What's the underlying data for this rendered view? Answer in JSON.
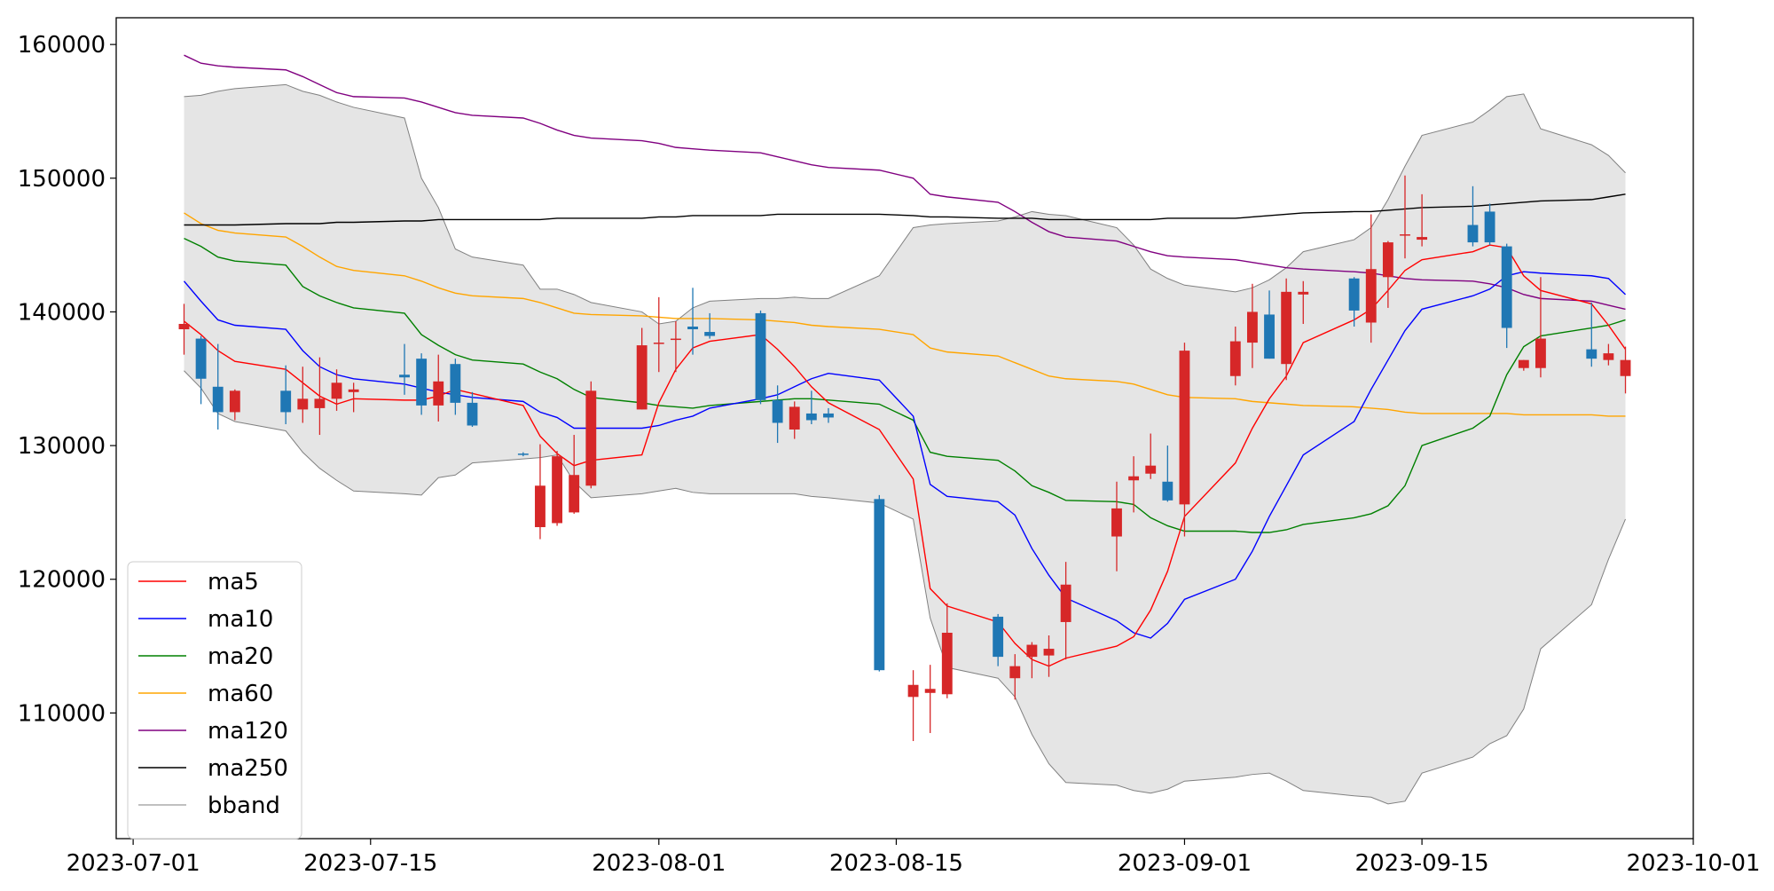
{
  "chart_data": {
    "type": "candlestick",
    "x_axis": {
      "ticks": [
        "2023-07-01",
        "2023-07-15",
        "2023-08-01",
        "2023-08-15",
        "2023-09-01",
        "2023-09-15",
        "2023-10-01"
      ],
      "range": [
        "2023-06-30",
        "2023-10-01"
      ]
    },
    "y_axis": {
      "ticks": [
        110000,
        120000,
        130000,
        140000,
        150000,
        160000
      ],
      "range": [
        100600,
        162000
      ]
    },
    "grid": false,
    "legend": {
      "position": "lower-left",
      "entries": [
        {
          "label": "ma5",
          "color": "#ff0000"
        },
        {
          "label": "ma10",
          "color": "#0000ff"
        },
        {
          "label": "ma20",
          "color": "#008000"
        },
        {
          "label": "ma60",
          "color": "#ffa500"
        },
        {
          "label": "ma120",
          "color": "#800080"
        },
        {
          "label": "ma250",
          "color": "#000000"
        },
        {
          "label": "bband",
          "color": "#808080"
        }
      ]
    },
    "colors": {
      "up": "#d62728",
      "down": "#1f77b4",
      "band_fill": "#e5e5e5"
    },
    "dates": [
      "2023-07-04",
      "2023-07-05",
      "2023-07-06",
      "2023-07-07",
      "2023-07-10",
      "2023-07-11",
      "2023-07-12",
      "2023-07-13",
      "2023-07-14",
      "2023-07-17",
      "2023-07-18",
      "2023-07-19",
      "2023-07-20",
      "2023-07-21",
      "2023-07-24",
      "2023-07-25",
      "2023-07-26",
      "2023-07-27",
      "2023-07-28",
      "2023-07-31",
      "2023-08-01",
      "2023-08-02",
      "2023-08-03",
      "2023-08-04",
      "2023-08-07",
      "2023-08-08",
      "2023-08-09",
      "2023-08-10",
      "2023-08-11",
      "2023-08-14",
      "2023-08-16",
      "2023-08-17",
      "2023-08-18",
      "2023-08-21",
      "2023-08-22",
      "2023-08-23",
      "2023-08-24",
      "2023-08-25",
      "2023-08-28",
      "2023-08-29",
      "2023-08-30",
      "2023-08-31",
      "2023-09-01",
      "2023-09-04",
      "2023-09-05",
      "2023-09-06",
      "2023-09-07",
      "2023-09-08",
      "2023-09-11",
      "2023-09-12",
      "2023-09-13",
      "2023-09-14",
      "2023-09-15",
      "2023-09-18",
      "2023-09-19",
      "2023-09-20",
      "2023-09-21",
      "2023-09-22",
      "2023-09-25",
      "2023-09-26",
      "2023-09-27"
    ],
    "open": [
      138700,
      138000,
      134400,
      132500,
      134100,
      132700,
      132800,
      133500,
      134000,
      135300,
      136500,
      133000,
      136100,
      133200,
      129400,
      123900,
      124200,
      125000,
      127000,
      132700,
      137600,
      137900,
      138900,
      138500,
      139900,
      133400,
      131200,
      132400,
      132400,
      126000,
      111200,
      111500,
      111400,
      117200,
      112600,
      114200,
      114300,
      116800,
      123200,
      127400,
      127900,
      127300,
      125600,
      135200,
      137700,
      139800,
      136100,
      141300,
      142500,
      139200,
      142600,
      145800,
      145400,
      146500,
      147500,
      144900,
      135800,
      135800,
      137200,
      136400,
      135200
    ],
    "close": [
      139100,
      135000,
      132500,
      134100,
      132500,
      133500,
      133500,
      134700,
      134200,
      135100,
      133000,
      134800,
      133200,
      131500,
      129300,
      127000,
      129200,
      127800,
      134100,
      137500,
      137700,
      138000,
      138700,
      138200,
      133400,
      131700,
      132900,
      131900,
      132100,
      113200,
      112100,
      111800,
      116000,
      114200,
      113500,
      115100,
      114800,
      119600,
      125300,
      127700,
      128500,
      125900,
      137100,
      137800,
      140000,
      136500,
      141500,
      141500,
      140100,
      143200,
      145200,
      145800,
      145600,
      145200,
      145200,
      138800,
      136400,
      138000,
      136500,
      136900,
      136400
    ],
    "high": [
      140600,
      138200,
      137600,
      134200,
      136000,
      135900,
      136600,
      135700,
      134700,
      137600,
      136900,
      136800,
      136500,
      134000,
      129500,
      130100,
      129600,
      130800,
      134800,
      138800,
      141100,
      139300,
      141800,
      139900,
      140100,
      134500,
      133300,
      134100,
      132800,
      126300,
      113200,
      113600,
      118200,
      117400,
      114400,
      115300,
      115800,
      121300,
      127300,
      129200,
      130900,
      130000,
      137700,
      138900,
      142100,
      141600,
      142500,
      142300,
      142600,
      147300,
      145300,
      150200,
      148800,
      149400,
      148100,
      145100,
      136400,
      142600,
      140700,
      137600,
      137400
    ],
    "low": [
      136800,
      133100,
      131200,
      131900,
      131600,
      131700,
      130800,
      132600,
      132500,
      133800,
      132300,
      131800,
      132300,
      131400,
      129200,
      123000,
      124000,
      124900,
      126800,
      132700,
      135500,
      135500,
      136800,
      138000,
      133100,
      130200,
      130500,
      131600,
      131700,
      113100,
      107900,
      108500,
      111100,
      113500,
      111000,
      112600,
      112700,
      114000,
      120600,
      125000,
      127500,
      125800,
      123200,
      134500,
      135800,
      136500,
      134900,
      139100,
      138900,
      137700,
      140300,
      144000,
      144900,
      144900,
      145000,
      137300,
      135600,
      135100,
      135900,
      136000,
      133900
    ],
    "ma5": [
      139300,
      138300,
      137100,
      136300,
      135700,
      134700,
      133700,
      133100,
      133500,
      133400,
      133400,
      133700,
      134200,
      133900,
      133000,
      130700,
      129400,
      128500,
      128900,
      129300,
      133200,
      135700,
      137300,
      137800,
      138300,
      137200,
      135900,
      134400,
      133200,
      131200,
      127500,
      119300,
      118000,
      116800,
      115200,
      114000,
      113500,
      114100,
      115000,
      115700,
      117700,
      120600,
      124700,
      128700,
      131300,
      133500,
      135200,
      137700,
      139400,
      140200,
      141600,
      143100,
      143900,
      144500,
      145000,
      144800,
      142700,
      141600,
      140600,
      139000,
      137200
    ],
    "ma10": [
      142300,
      140800,
      139400,
      139000,
      138700,
      137100,
      135900,
      135300,
      135000,
      134600,
      134300,
      134000,
      133800,
      133600,
      133300,
      132500,
      132100,
      131300,
      131300,
      131300,
      131500,
      131900,
      132200,
      132800,
      133500,
      133800,
      134400,
      135000,
      135400,
      134900,
      132200,
      127100,
      126200,
      125800,
      124800,
      122300,
      120300,
      118600,
      116900,
      116000,
      115600,
      116700,
      118500,
      120000,
      122100,
      124700,
      127000,
      129300,
      131800,
      134200,
      136400,
      138600,
      140200,
      141200,
      141700,
      142700,
      143000,
      142900,
      142700,
      142500,
      141300
    ],
    "ma20": [
      145500,
      144900,
      144100,
      143800,
      143500,
      141900,
      141200,
      140700,
      140300,
      139900,
      138300,
      137500,
      136800,
      136400,
      136100,
      135500,
      135000,
      134200,
      133600,
      133200,
      133000,
      132900,
      132800,
      133000,
      133300,
      133400,
      133500,
      133500,
      133400,
      133100,
      131900,
      129500,
      129200,
      128900,
      128100,
      127000,
      126500,
      125900,
      125800,
      125600,
      124600,
      124000,
      123600,
      123600,
      123500,
      123500,
      123700,
      124100,
      124600,
      124900,
      125500,
      127000,
      130000,
      131300,
      132200,
      135300,
      137400,
      138200,
      138800,
      139000,
      139400
    ],
    "ma60": [
      147400,
      146600,
      146100,
      145900,
      145600,
      144900,
      144100,
      143400,
      143100,
      142700,
      142300,
      141800,
      141400,
      141200,
      141000,
      140700,
      140300,
      139900,
      139800,
      139700,
      139600,
      139500,
      139500,
      139500,
      139400,
      139300,
      139200,
      139000,
      138900,
      138700,
      138300,
      137300,
      137000,
      136700,
      136200,
      135700,
      135200,
      135000,
      134800,
      134600,
      134200,
      133800,
      133600,
      133500,
      133300,
      133200,
      133100,
      133000,
      132900,
      132800,
      132700,
      132500,
      132400,
      132400,
      132400,
      132400,
      132300,
      132300,
      132300,
      132200,
      132200
    ],
    "ma120": [
      159200,
      158600,
      158400,
      158300,
      158100,
      157600,
      157000,
      156400,
      156100,
      156000,
      155700,
      155300,
      154900,
      154700,
      154500,
      154100,
      153600,
      153200,
      153000,
      152800,
      152600,
      152300,
      152200,
      152100,
      151900,
      151600,
      151300,
      151000,
      150800,
      150600,
      150000,
      148800,
      148600,
      148200,
      147500,
      146700,
      146000,
      145600,
      145300,
      144900,
      144500,
      144200,
      144100,
      143900,
      143700,
      143500,
      143300,
      143200,
      143000,
      142900,
      142700,
      142500,
      142400,
      142300,
      142100,
      141800,
      141300,
      141000,
      140800,
      140500,
      140200
    ],
    "ma250": [
      146500,
      146500,
      146500,
      146500,
      146600,
      146600,
      146600,
      146700,
      146700,
      146800,
      146800,
      146900,
      146900,
      146900,
      146900,
      146900,
      147000,
      147000,
      147000,
      147000,
      147100,
      147100,
      147200,
      147200,
      147200,
      147300,
      147300,
      147300,
      147300,
      147300,
      147200,
      147100,
      147100,
      147000,
      147000,
      147000,
      146900,
      146900,
      146900,
      146900,
      146900,
      147000,
      147000,
      147000,
      147100,
      147200,
      147300,
      147400,
      147500,
      147500,
      147600,
      147700,
      147800,
      147900,
      148000,
      148100,
      148200,
      148300,
      148400,
      148600,
      148800
    ],
    "bb_upper": [
      156100,
      156200,
      156500,
      156700,
      157000,
      156500,
      156200,
      155700,
      155300,
      154500,
      150000,
      147800,
      144700,
      144100,
      143500,
      141700,
      141700,
      141300,
      140700,
      140000,
      139100,
      139300,
      140300,
      140800,
      141000,
      141000,
      141100,
      141000,
      141000,
      142700,
      146300,
      146500,
      146600,
      146800,
      147100,
      147500,
      147300,
      147200,
      146300,
      145000,
      143200,
      142500,
      142000,
      141500,
      141800,
      142400,
      143300,
      144500,
      145400,
      146300,
      148400,
      150900,
      153200,
      154200,
      155100,
      156100,
      156300,
      153700,
      152500,
      151700,
      150400
    ],
    "bb_lower": [
      135600,
      134300,
      132400,
      131800,
      131100,
      129500,
      128300,
      127400,
      126600,
      126400,
      126300,
      127600,
      127800,
      128700,
      129000,
      129100,
      129300,
      127300,
      126100,
      126400,
      126600,
      126800,
      126500,
      126400,
      126400,
      126400,
      126400,
      126200,
      126100,
      125700,
      124500,
      117100,
      113400,
      112600,
      111200,
      108400,
      106200,
      104800,
      104600,
      104200,
      104000,
      104300,
      104900,
      105200,
      105400,
      105500,
      104900,
      104200,
      103800,
      103700,
      103200,
      103400,
      105500,
      106700,
      107700,
      108300,
      110300,
      114800,
      118100,
      121500,
      124500
    ]
  }
}
